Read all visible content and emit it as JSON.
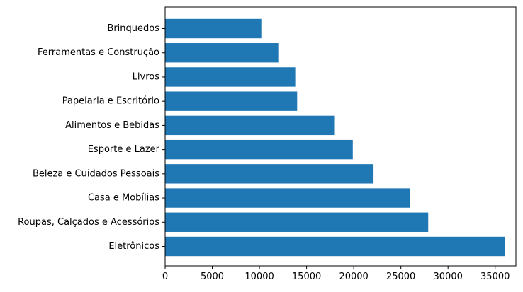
{
  "chart_data": {
    "type": "bar",
    "orientation": "horizontal",
    "title": "",
    "xlabel": "",
    "ylabel": "",
    "categories": [
      "Eletrônicos",
      "Roupas, Calçados e Acessórios",
      "Casa e Mobílias",
      "Beleza e Cuidados Pessoais",
      "Esporte e Lazer",
      "Alimentos e Bebidas",
      "Papelaria e Escritório",
      "Livros",
      "Ferramentas e Construção",
      "Brinquedos"
    ],
    "values": [
      36000,
      27900,
      26000,
      22100,
      19900,
      18000,
      14000,
      13800,
      12000,
      10200
    ],
    "xlim": [
      0,
      37200
    ],
    "xticks": [
      0,
      5000,
      10000,
      15000,
      20000,
      25000,
      30000,
      35000
    ],
    "xtick_labels": [
      "0",
      "5000",
      "10000",
      "15000",
      "20000",
      "25000",
      "30000",
      "35000"
    ],
    "bar_color": "#1f77b4",
    "grid": false,
    "legend": "none"
  }
}
